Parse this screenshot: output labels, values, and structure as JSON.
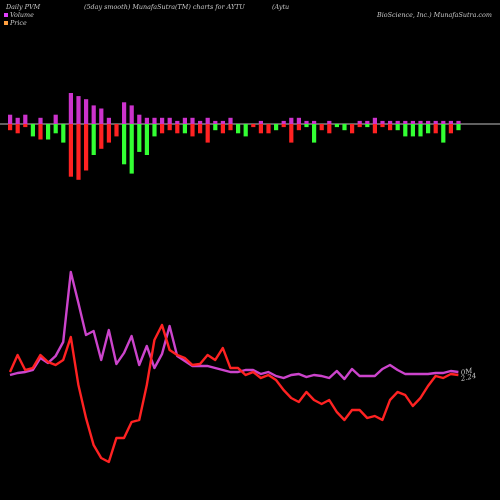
{
  "header": {
    "left": "Daily PVM",
    "middle": "(5day smooth) MunafaSutra(TM) charts for AYTU",
    "name_part1": "(Aytu",
    "name_part2": "BioScience, Inc.) MunafaSutra.com"
  },
  "legend": {
    "volume_label": "Volume",
    "volume_color": "#e040fb",
    "price_label": "Price",
    "price_color": "#ffa040"
  },
  "colors": {
    "background": "#000000",
    "volume_up": "#cc33cc",
    "pvm_up": "#33ff33",
    "pvm_down": "#ff2222",
    "volume_line": "#cc44cc",
    "price_line": "#ff2222",
    "zero_line": "#ffffff"
  },
  "chart_data": {
    "type": "bar",
    "volume_bars": [
      3,
      2,
      3,
      0,
      2,
      0,
      3,
      0,
      10,
      9,
      8,
      6,
      5,
      2,
      0,
      7,
      6,
      3,
      2,
      2,
      2,
      2,
      1,
      2,
      2,
      1,
      2,
      1,
      1,
      2,
      0,
      0,
      0,
      1,
      0,
      0,
      1,
      2,
      2,
      1,
      1,
      0,
      1,
      0,
      0,
      0,
      1,
      1,
      2,
      1,
      1,
      1,
      1,
      1,
      1,
      1,
      1,
      1,
      1,
      1
    ],
    "pvm_bars": [
      -2,
      -3,
      -1,
      -4,
      -5,
      -5,
      -3,
      -6,
      -17,
      -18,
      -15,
      -10,
      -8,
      -6,
      -4,
      -13,
      -16,
      -9,
      -10,
      -4,
      -3,
      -2,
      -3,
      -3,
      -4,
      -3,
      -6,
      -2,
      -3,
      -2,
      -3,
      -4,
      -1,
      -3,
      -3,
      -2,
      -1,
      -6,
      -2,
      -1,
      -6,
      -2,
      -3,
      -1,
      -2,
      -3,
      -1,
      -1,
      -3,
      -1,
      -2,
      -2,
      -4,
      -4,
      -4,
      -3,
      -3,
      -6,
      -3,
      -2
    ],
    "volume_line": [
      375,
      373,
      372,
      370,
      358,
      363,
      356,
      342,
      272,
      303,
      335,
      331,
      360,
      330,
      364,
      353,
      336,
      365,
      346,
      368,
      354,
      326,
      356,
      361,
      366,
      366,
      366,
      368,
      370,
      372,
      372,
      370,
      370,
      374,
      372,
      376,
      378,
      375,
      374,
      377,
      375,
      376,
      378,
      371,
      379,
      369,
      376,
      376,
      376,
      369,
      365,
      370,
      374,
      374,
      374,
      374,
      373,
      373,
      371,
      372
    ],
    "price_line": [
      372,
      355,
      370,
      368,
      355,
      362,
      365,
      360,
      337,
      385,
      418,
      445,
      458,
      462,
      438,
      438,
      422,
      420,
      385,
      340,
      325,
      350,
      355,
      358,
      365,
      364,
      355,
      360,
      348,
      368,
      368,
      375,
      372,
      378,
      375,
      380,
      390,
      398,
      402,
      392,
      400,
      404,
      400,
      412,
      420,
      410,
      410,
      418,
      416,
      420,
      400,
      392,
      395,
      406,
      398,
      386,
      376,
      378,
      374,
      375
    ],
    "price_label": "2.24",
    "volume_label": "0M"
  }
}
